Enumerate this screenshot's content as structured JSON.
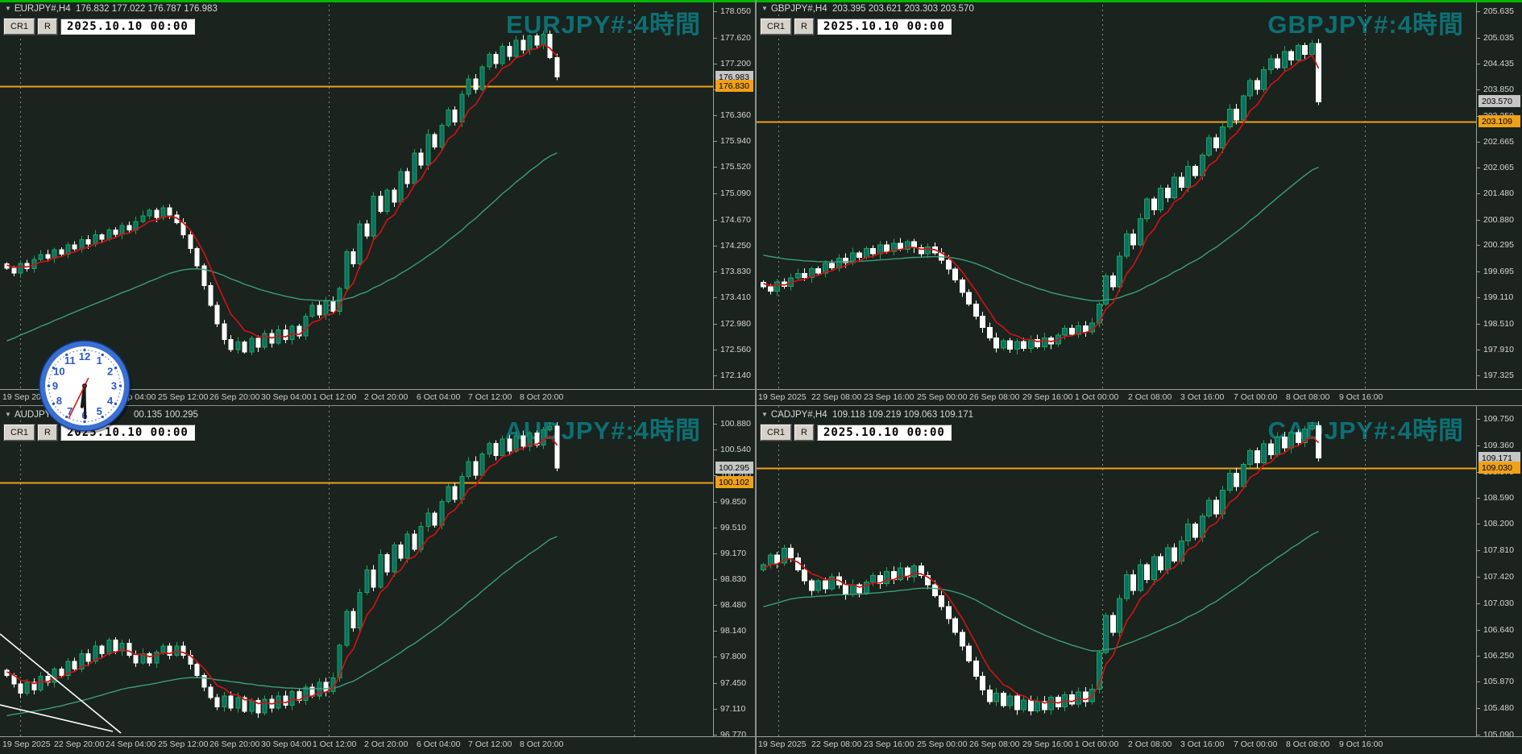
{
  "colors": {
    "background": "#1a231e",
    "bull_body": "#0b7163",
    "bull_edge": "#23a25c",
    "bear_body": "#ffffff",
    "ma_fast": "#c81414",
    "ma_slow": "#3d9c7e",
    "level_line": "#efa119",
    "grid_dash": "#a8aea8",
    "watermark": "#0e6f73",
    "close_box_bg": "#c6c6c6",
    "level_box_bg": "#efa119",
    "top_strip": "#00b400",
    "trendline": "#ffffff"
  },
  "clock": {
    "numerals": [
      "12",
      "1",
      "2",
      "3",
      "4",
      "5",
      "6",
      "7",
      "8",
      "9",
      "10",
      "11"
    ],
    "hour_angle": 187,
    "minute_angle": 179,
    "second_angle": 206,
    "rim_color": "#3a70d2",
    "face_color": "#ffffff",
    "number_color": "#2a57c9",
    "hand_color": "#1a1a1a",
    "second_hand_color": "#d81616"
  },
  "chart_data": [
    {
      "type": "candlestick",
      "symbol": "EURJPY#",
      "period": "H4",
      "watermark": "EURJPY#:4時間",
      "info_left": "EURJPY#,H4  176.832 177.022 176.787 176.983",
      "info_right": "",
      "button_1": "CR1",
      "button_2": "R",
      "datetime_value": "2025.10.10 00:00",
      "ohlc": {
        "open": 176.832,
        "high": 177.022,
        "low": 176.787,
        "close": 176.983
      },
      "y_ticks": [
        "178.050",
        "177.620",
        "177.200",
        "176.780",
        "176.360",
        "175.940",
        "175.520",
        "175.090",
        "174.670",
        "174.250",
        "173.830",
        "173.410",
        "172.980",
        "172.560",
        "172.140"
      ],
      "x_labels": [
        "19 Sep 2025",
        "22 Sep 20:00",
        "24 Sep 04:00",
        "25 Sep 12:00",
        "26 Sep 20:00",
        "30 Sep 04:00",
        "1 Oct 12:00",
        "2 Oct 20:00",
        "6 Oct 04:00",
        "7 Oct 12:00",
        "8 Oct 20:00"
      ],
      "close_box": "176.983",
      "level_box": "176.830",
      "level_price": 176.83,
      "first_open": 173.95,
      "wick": 0.06,
      "teal_seed": 172.65,
      "separators": [
        0.028,
        0.46,
        0.888
      ],
      "trendlines": [],
      "closes": [
        173.88,
        173.8,
        173.96,
        173.87,
        174.02,
        174.1,
        174.04,
        174.18,
        174.11,
        174.26,
        174.19,
        174.34,
        174.27,
        174.42,
        174.35,
        174.5,
        174.43,
        174.57,
        174.5,
        174.64,
        174.73,
        174.82,
        174.7,
        174.86,
        174.74,
        174.62,
        174.42,
        174.2,
        173.92,
        173.6,
        173.28,
        172.98,
        172.72,
        172.56,
        172.68,
        172.52,
        172.74,
        172.6,
        172.82,
        172.66,
        172.88,
        172.72,
        172.94,
        172.78,
        173.1,
        173.28,
        173.12,
        173.34,
        173.18,
        173.55,
        174.15,
        173.95,
        174.6,
        174.4,
        175.05,
        174.8,
        175.15,
        174.95,
        175.45,
        175.25,
        175.75,
        175.55,
        176.05,
        175.85,
        176.2,
        176.45,
        176.25,
        176.7,
        176.95,
        176.78,
        177.15,
        177.35,
        177.2,
        177.48,
        177.32,
        177.58,
        177.42,
        177.65,
        177.5,
        177.68,
        177.3,
        176.983
      ]
    },
    {
      "type": "candlestick",
      "symbol": "GBPJPY#",
      "period": "H4",
      "watermark": "GBPJPY#:4時間",
      "info_left": "GBPJPY#,H4  203.395 203.621 203.303 203.570",
      "info_right": "",
      "button_1": "CR1",
      "button_2": "R",
      "datetime_value": "2025.10.10 00:00",
      "ohlc": {
        "open": 203.395,
        "high": 203.621,
        "low": 203.303,
        "close": 203.57
      },
      "y_ticks": [
        "205.635",
        "205.035",
        "204.435",
        "203.850",
        "203.250",
        "202.665",
        "202.065",
        "201.480",
        "200.880",
        "200.295",
        "199.695",
        "199.110",
        "198.510",
        "197.910",
        "197.325"
      ],
      "x_labels": [
        "19 Sep 2025",
        "22 Sep 08:00",
        "23 Sep 16:00",
        "25 Sep 00:00",
        "26 Sep 08:00",
        "29 Sep 16:00",
        "1 Oct 00:00",
        "2 Oct 08:00",
        "3 Oct 16:00",
        "7 Oct 00:00",
        "8 Oct 08:00",
        "9 Oct 16:00"
      ],
      "close_box": "203.570",
      "level_box": "203.109",
      "level_price": 203.109,
      "first_open": 199.45,
      "wick": 0.09,
      "teal_seed": 200.1,
      "separators": [
        0.03,
        0.48,
        0.845
      ],
      "trendlines": [],
      "closes": [
        199.35,
        199.25,
        199.46,
        199.36,
        199.55,
        199.65,
        199.56,
        199.76,
        199.66,
        199.88,
        199.78,
        200.0,
        199.9,
        200.12,
        200.02,
        200.22,
        200.1,
        200.3,
        200.16,
        200.34,
        200.2,
        200.38,
        200.24,
        200.1,
        200.26,
        200.12,
        199.95,
        199.75,
        199.5,
        199.22,
        198.95,
        198.68,
        198.42,
        198.18,
        197.95,
        198.12,
        197.92,
        198.1,
        197.94,
        198.14,
        197.98,
        198.18,
        198.04,
        198.24,
        198.4,
        198.26,
        198.46,
        198.32,
        198.52,
        198.95,
        199.6,
        199.35,
        200.05,
        200.55,
        200.3,
        200.9,
        201.35,
        201.1,
        201.6,
        201.38,
        201.85,
        201.62,
        202.1,
        201.88,
        202.35,
        202.75,
        202.52,
        203.0,
        203.4,
        203.15,
        203.7,
        204.05,
        203.85,
        204.3,
        204.55,
        204.35,
        204.72,
        204.52,
        204.85,
        204.65,
        204.9,
        203.57
      ]
    },
    {
      "type": "candlestick",
      "symbol": "AUDJPY#",
      "period": "H4",
      "watermark": "AUDJPY#:4時間",
      "info_left": "AUDJPY",
      "info_right": "00.135 100.295",
      "button_1": "CR1",
      "button_2": "R",
      "datetime_value": "2025.10.10 00:00",
      "ohlc": {
        "low": 100.135,
        "close": 100.295
      },
      "y_ticks": [
        "100.880",
        "100.540",
        "100.200",
        "99.850",
        "99.510",
        "99.170",
        "98.830",
        "98.480",
        "98.140",
        "97.800",
        "97.450",
        "97.110",
        "96.770"
      ],
      "x_labels": [
        "19 Sep 2025",
        "22 Sep 20:00",
        "24 Sep 04:00",
        "25 Sep 12:00",
        "26 Sep 20:00",
        "30 Sep 04:00",
        "1 Oct 12:00",
        "2 Oct 20:00",
        "6 Oct 04:00",
        "7 Oct 12:00",
        "8 Oct 20:00"
      ],
      "close_box": "100.295",
      "level_box": "100.102",
      "level_price": 100.102,
      "first_open": 97.62,
      "wick": 0.05,
      "teal_seed": 97.0,
      "separators": [
        0.028,
        0.46,
        0.888
      ],
      "trendlines": [
        [
          0,
          283,
          150,
          406
        ],
        [
          0,
          371,
          140,
          404
        ]
      ],
      "closes": [
        97.55,
        97.44,
        97.32,
        97.46,
        97.36,
        97.54,
        97.46,
        97.64,
        97.55,
        97.74,
        97.64,
        97.84,
        97.74,
        97.94,
        97.84,
        98.02,
        97.88,
        97.98,
        97.82,
        97.72,
        97.84,
        97.72,
        97.86,
        97.94,
        97.82,
        97.94,
        97.82,
        97.7,
        97.55,
        97.4,
        97.26,
        97.14,
        97.28,
        97.12,
        97.26,
        97.08,
        97.22,
        97.06,
        97.24,
        97.12,
        97.28,
        97.16,
        97.34,
        97.22,
        97.4,
        97.28,
        97.46,
        97.34,
        97.52,
        97.95,
        98.4,
        98.18,
        98.65,
        98.95,
        98.72,
        99.15,
        98.92,
        99.28,
        99.1,
        99.42,
        99.22,
        99.52,
        99.7,
        99.54,
        99.85,
        100.05,
        99.88,
        100.18,
        100.38,
        100.2,
        100.48,
        100.62,
        100.46,
        100.68,
        100.52,
        100.72,
        100.58,
        100.76,
        100.6,
        100.8,
        100.85,
        100.295
      ]
    },
    {
      "type": "candlestick",
      "symbol": "CADJPY#",
      "period": "H4",
      "watermark": "CADJPY#:4時間",
      "info_left": "CADJPY#,H4  109.118 109.219 109.063 109.171",
      "info_right": "",
      "button_1": "CR1",
      "button_2": "R",
      "datetime_value": "2025.10.10 00:00",
      "ohlc": {
        "open": 109.118,
        "high": 109.219,
        "low": 109.063,
        "close": 109.171
      },
      "y_ticks": [
        "109.750",
        "109.360",
        "108.970",
        "108.590",
        "108.200",
        "107.810",
        "107.420",
        "107.030",
        "106.640",
        "106.250",
        "105.870",
        "105.480",
        "105.090"
      ],
      "x_labels": [
        "19 Sep 2025",
        "22 Sep 08:00",
        "23 Sep 16:00",
        "25 Sep 00:00",
        "26 Sep 08:00",
        "29 Sep 16:00",
        "1 Oct 00:00",
        "2 Oct 08:00",
        "3 Oct 16:00",
        "7 Oct 00:00",
        "8 Oct 08:00",
        "9 Oct 16:00"
      ],
      "close_box": "109.171",
      "level_box": "109.030",
      "level_price": 109.03,
      "first_open": 107.52,
      "wick": 0.06,
      "teal_seed": 106.95,
      "separators": [
        0.03,
        0.48,
        0.845
      ],
      "trendlines": [],
      "closes": [
        107.6,
        107.74,
        107.62,
        107.84,
        107.7,
        107.52,
        107.36,
        107.22,
        107.36,
        107.24,
        107.42,
        107.3,
        107.16,
        107.3,
        107.18,
        107.34,
        107.44,
        107.32,
        107.5,
        107.38,
        107.55,
        107.42,
        107.58,
        107.44,
        107.3,
        107.14,
        106.98,
        106.8,
        106.6,
        106.4,
        106.18,
        105.95,
        105.75,
        105.58,
        105.7,
        105.52,
        105.66,
        105.46,
        105.6,
        105.44,
        105.58,
        105.46,
        105.64,
        105.5,
        105.68,
        105.54,
        105.72,
        105.58,
        105.76,
        106.3,
        106.85,
        106.6,
        107.1,
        107.45,
        107.22,
        107.6,
        107.38,
        107.72,
        107.52,
        107.85,
        107.65,
        107.95,
        108.2,
        108.0,
        108.32,
        108.55,
        108.35,
        108.7,
        108.95,
        108.75,
        109.08,
        109.28,
        109.1,
        109.38,
        109.22,
        109.48,
        109.32,
        109.55,
        109.4,
        109.6,
        109.65,
        109.171
      ]
    }
  ]
}
